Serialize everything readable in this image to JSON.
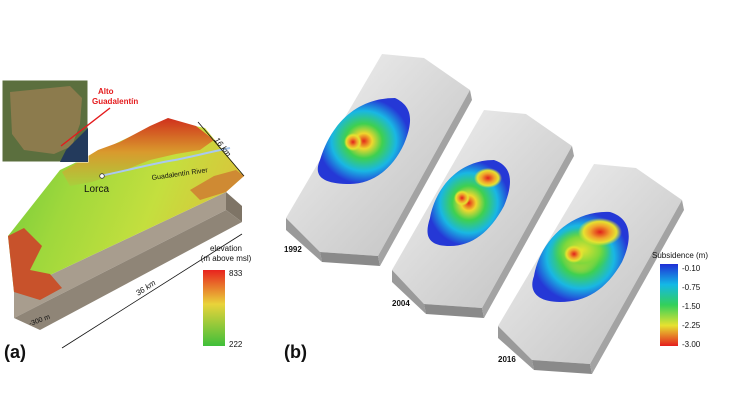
{
  "panel_a": {
    "label": "(a)",
    "inset_label_line1": "Alto",
    "inset_label_line2": "Guadalentín",
    "town": "Lorca",
    "river": "Guadalentín River",
    "width_dim": "16 km",
    "length_dim": "36 km",
    "depth_dim": "-300 m",
    "colorbar_title_line1": "elevation",
    "colorbar_title_line2": "(m above msl)",
    "colorbar_max": "833",
    "colorbar_min": "222",
    "colors": {
      "high": "#e8231e",
      "mid": "#e9e13a",
      "low": "#3fbf3a",
      "inset_label": "#e41a1c"
    }
  },
  "panel_b": {
    "label": "(b)",
    "years": [
      "1992",
      "2004",
      "2016"
    ],
    "colorbar_title": "Subsidence (m)",
    "colorbar_ticks": [
      "-0.10",
      "-0.75",
      "-1.50",
      "-2.25",
      "-3.00"
    ]
  }
}
